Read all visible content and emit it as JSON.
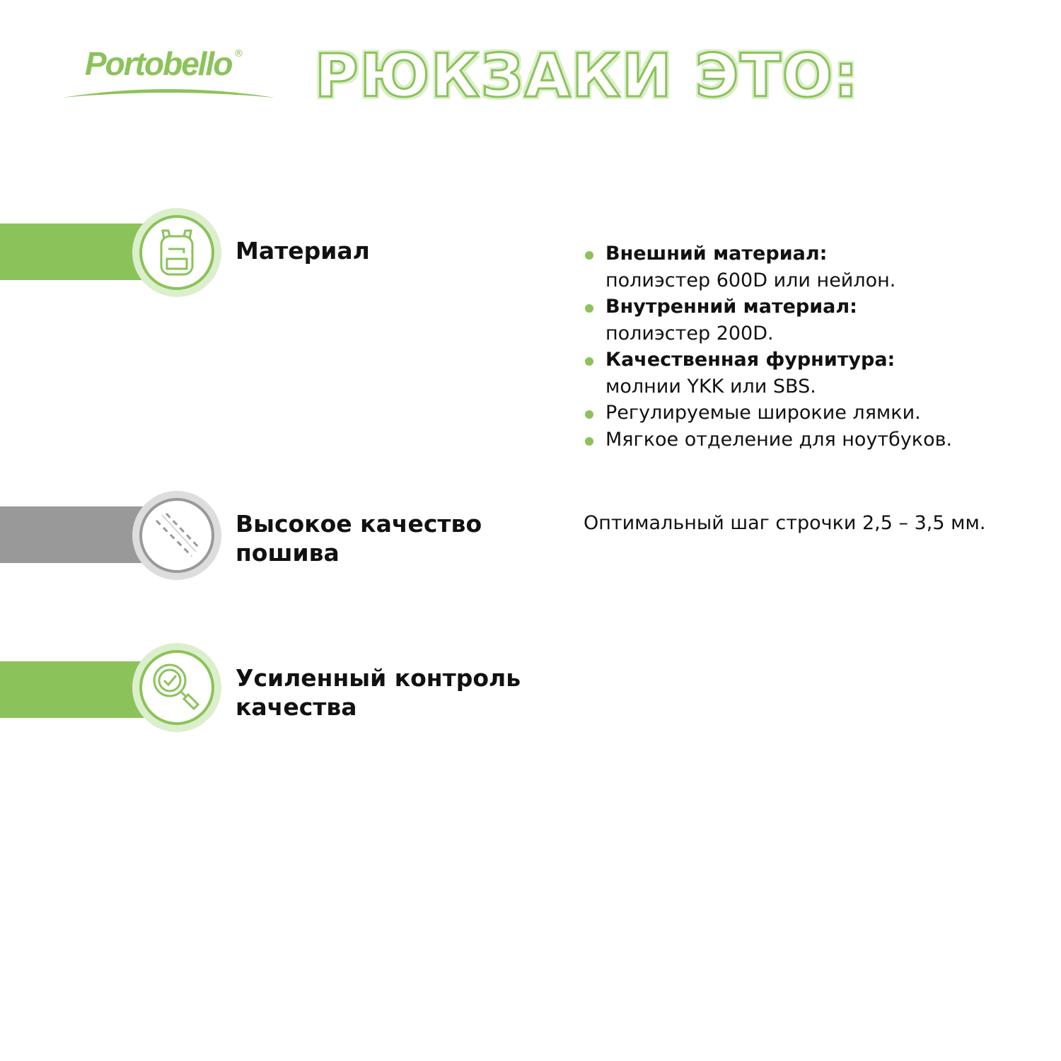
{
  "logo": {
    "text": "Portobello",
    "reg": "®"
  },
  "title": "РЮКЗАКИ ЭТО:",
  "colors": {
    "green": "#8bc35a",
    "light_green": "#dcefcc",
    "gray": "#999999"
  },
  "sections": [
    {
      "icon": "backpack-icon",
      "heading": "Материал"
    },
    {
      "icon": "stitching-icon",
      "heading_lines": [
        "Высокое качество",
        "пошива"
      ]
    },
    {
      "icon": "magnifier-check-icon",
      "heading_lines": [
        "Усиленный контроль",
        "качества"
      ]
    }
  ],
  "material_list": [
    {
      "bold": "Внешний материал:",
      "text": "полиэстер 600D или нейлон."
    },
    {
      "bold": "Внутренний материал:",
      "text": "полиэстер 200D."
    },
    {
      "bold": "Качественная фурнитура:",
      "text": "молнии YKK или SBS."
    },
    {
      "text": "Регулируемые широкие лямки."
    },
    {
      "text": "Мягкое отделение для ноутбуков."
    }
  ],
  "stitch_desc": "Оптимальный шаг строчки 2,5 – 3,5 мм."
}
